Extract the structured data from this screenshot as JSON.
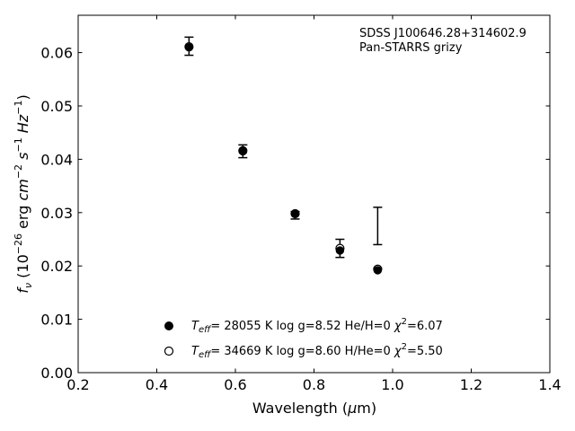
{
  "chart_data": {
    "type": "scatter",
    "xlabel": "Wavelength (μm)",
    "ylabel": "f_ν (10^−26 erg cm^−2 s^−1 Hz^−1)",
    "xlim": [
      0.2,
      1.4
    ],
    "ylim": [
      0.0,
      0.067
    ],
    "xticks": [
      "0.2",
      "0.4",
      "0.6",
      "0.8",
      "1.0",
      "1.2",
      "1.4"
    ],
    "yticks": [
      "0.00",
      "0.01",
      "0.02",
      "0.03",
      "0.04",
      "0.05",
      "0.06"
    ],
    "grid": false,
    "annotations": [
      "SDSS J100646.28+314602.9",
      "Pan-STARRS grizy"
    ],
    "observed": {
      "x": [
        0.482,
        0.619,
        0.752,
        0.866,
        0.962
      ],
      "y": [
        0.0612,
        0.0415,
        0.0295,
        0.0233,
        0.0275
      ],
      "yerr": [
        0.0017,
        0.0012,
        0.0007,
        0.0017,
        0.0035
      ]
    },
    "series": [
      {
        "name": "T_eff= 28055 K  log g=8.52  He/H=0  χ²=6.07",
        "marker": "filled-circle",
        "x": [
          0.482,
          0.619,
          0.752,
          0.866,
          0.962
        ],
        "y": [
          0.061,
          0.0415,
          0.0298,
          0.0229,
          0.0192
        ]
      },
      {
        "name": "T_eff= 34669 K  log g=8.60  H/He=0  χ²=5.50",
        "marker": "open-circle",
        "x": [
          0.482,
          0.619,
          0.752,
          0.866,
          0.962
        ],
        "y": [
          0.0611,
          0.0416,
          0.0298,
          0.0233,
          0.0194
        ]
      }
    ],
    "legend": {
      "placement": "lower-center",
      "entries": [
        {
          "teff": "= 28055 K  log g=8.52  He/H=0  ",
          "chi": "=6.07",
          "marker": "filled-circle"
        },
        {
          "teff": "= 34669 K  log g=8.60  H/He=0  ",
          "chi": "=5.50",
          "marker": "open-circle"
        }
      ]
    }
  }
}
